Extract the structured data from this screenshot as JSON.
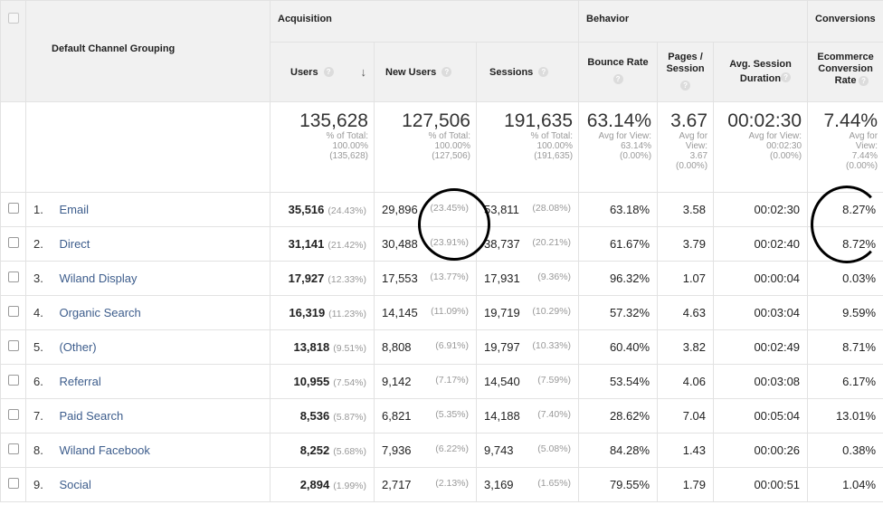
{
  "header": {
    "dimension_label": "Default Channel Grouping",
    "groups": [
      "Acquisition",
      "Behavior",
      "Conversions"
    ],
    "columns": {
      "users": "Users",
      "new_users": "New Users",
      "sessions": "Sessions",
      "bounce_rate": "Bounce Rate",
      "pages_session": "Pages / Session",
      "avg_session_duration": "Avg. Session Duration",
      "ecom_conv_rate": "Ecommerce Conversion Rate"
    },
    "help_glyph": "?",
    "sort_glyph": "↓"
  },
  "totals": {
    "users": {
      "value": "135,628",
      "l1": "% of Total:",
      "l2": "100.00%",
      "l3": "(135,628)"
    },
    "new_users": {
      "value": "127,506",
      "l1": "% of Total:",
      "l2": "100.00%",
      "l3": "(127,506)"
    },
    "sessions": {
      "value": "191,635",
      "l1": "% of Total:",
      "l2": "100.00%",
      "l3": "(191,635)"
    },
    "bounce_rate": {
      "value": "63.14%",
      "l1": "Avg for View:",
      "l2": "63.14%",
      "l3": "(0.00%)"
    },
    "pages_session": {
      "value": "3.67",
      "l1": "Avg for",
      "l2": "View:",
      "l3": "3.67",
      "l4": "(0.00%)"
    },
    "avg_session_duration": {
      "value": "00:02:30",
      "l1": "Avg for View:",
      "l2": "00:02:30",
      "l3": "(0.00%)"
    },
    "ecom_conv_rate": {
      "value": "7.44%",
      "l1": "Avg for",
      "l2": "View:",
      "l3": "7.44%",
      "l4": "(0.00%)"
    }
  },
  "rows": [
    {
      "rank": "1.",
      "channel": "Email",
      "users": "35,516",
      "users_pct": "(24.43%)",
      "new_users": "29,896",
      "new_users_pct": "(23.45%)",
      "sessions": "53,811",
      "sessions_pct": "(28.08%)",
      "bounce_rate": "63.18%",
      "pages_session": "3.58",
      "duration": "00:02:30",
      "conv_rate": "8.27%"
    },
    {
      "rank": "2.",
      "channel": "Direct",
      "users": "31,141",
      "users_pct": "(21.42%)",
      "new_users": "30,488",
      "new_users_pct": "(23.91%)",
      "sessions": "38,737",
      "sessions_pct": "(20.21%)",
      "bounce_rate": "61.67%",
      "pages_session": "3.79",
      "duration": "00:02:40",
      "conv_rate": "8.72%"
    },
    {
      "rank": "3.",
      "channel": "Wiland Display",
      "users": "17,927",
      "users_pct": "(12.33%)",
      "new_users": "17,553",
      "new_users_pct": "(13.77%)",
      "sessions": "17,931",
      "sessions_pct": "(9.36%)",
      "bounce_rate": "96.32%",
      "pages_session": "1.07",
      "duration": "00:00:04",
      "conv_rate": "0.03%"
    },
    {
      "rank": "4.",
      "channel": "Organic Search",
      "users": "16,319",
      "users_pct": "(11.23%)",
      "new_users": "14,145",
      "new_users_pct": "(11.09%)",
      "sessions": "19,719",
      "sessions_pct": "(10.29%)",
      "bounce_rate": "57.32%",
      "pages_session": "4.63",
      "duration": "00:03:04",
      "conv_rate": "9.59%"
    },
    {
      "rank": "5.",
      "channel": "(Other)",
      "users": "13,818",
      "users_pct": "(9.51%)",
      "new_users": "8,808",
      "new_users_pct": "(6.91%)",
      "sessions": "19,797",
      "sessions_pct": "(10.33%)",
      "bounce_rate": "60.40%",
      "pages_session": "3.82",
      "duration": "00:02:49",
      "conv_rate": "8.71%"
    },
    {
      "rank": "6.",
      "channel": "Referral",
      "users": "10,955",
      "users_pct": "(7.54%)",
      "new_users": "9,142",
      "new_users_pct": "(7.17%)",
      "sessions": "14,540",
      "sessions_pct": "(7.59%)",
      "bounce_rate": "53.54%",
      "pages_session": "4.06",
      "duration": "00:03:08",
      "conv_rate": "6.17%"
    },
    {
      "rank": "7.",
      "channel": "Paid Search",
      "users": "8,536",
      "users_pct": "(5.87%)",
      "new_users": "6,821",
      "new_users_pct": "(5.35%)",
      "sessions": "14,188",
      "sessions_pct": "(7.40%)",
      "bounce_rate": "28.62%",
      "pages_session": "7.04",
      "duration": "00:05:04",
      "conv_rate": "13.01%"
    },
    {
      "rank": "8.",
      "channel": "Wiland Facebook",
      "users": "8,252",
      "users_pct": "(5.68%)",
      "new_users": "7,936",
      "new_users_pct": "(6.22%)",
      "sessions": "9,743",
      "sessions_pct": "(5.08%)",
      "bounce_rate": "84.28%",
      "pages_session": "1.43",
      "duration": "00:00:26",
      "conv_rate": "0.38%"
    },
    {
      "rank": "9.",
      "channel": "Social",
      "users": "2,894",
      "users_pct": "(1.99%)",
      "new_users": "2,717",
      "new_users_pct": "(2.13%)",
      "sessions": "3,169",
      "sessions_pct": "(1.65%)",
      "bounce_rate": "79.55%",
      "pages_session": "1.79",
      "duration": "00:00:51",
      "conv_rate": "1.04%"
    }
  ]
}
